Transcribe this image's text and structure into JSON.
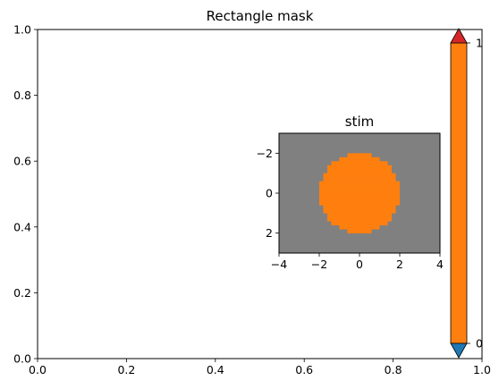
{
  "chart_data": [
    {
      "type": "line",
      "title": "Rectangle mask",
      "xlabel": "",
      "ylabel": "",
      "xlim": [
        0,
        1
      ],
      "ylim": [
        0,
        1
      ],
      "xticks": [
        0.0,
        0.2,
        0.4,
        0.6,
        0.8,
        1.0
      ],
      "xtick_labels": [
        "0.0",
        "0.2",
        "0.4",
        "0.6",
        "0.8",
        "1.0"
      ],
      "yticks": [
        0.0,
        0.2,
        0.4,
        0.6,
        0.8,
        1.0
      ],
      "ytick_labels": [
        "0.0",
        "0.2",
        "0.4",
        "0.6",
        "0.8",
        "1.0"
      ],
      "grid": false,
      "series": []
    },
    {
      "type": "heatmap",
      "title": "stim",
      "xlim": [
        -4,
        4
      ],
      "ylim": [
        3,
        -3
      ],
      "xticks": [
        -4,
        -2,
        0,
        2,
        4
      ],
      "xtick_labels": [
        "−4",
        "−2",
        "0",
        "2",
        "4"
      ],
      "yticks": [
        -2,
        0,
        2
      ],
      "ytick_labels": [
        "−2",
        "0",
        "2"
      ],
      "background_color": "#808080",
      "circle": {
        "center": [
          0,
          0
        ],
        "radius": 2.0,
        "color": "#ff7f0e"
      },
      "grid": false
    },
    {
      "type": "colorbar",
      "range": [
        0,
        1
      ],
      "ticks": [
        0,
        1
      ],
      "tick_labels": [
        "0",
        "1"
      ],
      "fill_color": "#ff7f0e",
      "extend_max_color": "#d62728",
      "extend_min_color": "#1f77b4"
    }
  ]
}
